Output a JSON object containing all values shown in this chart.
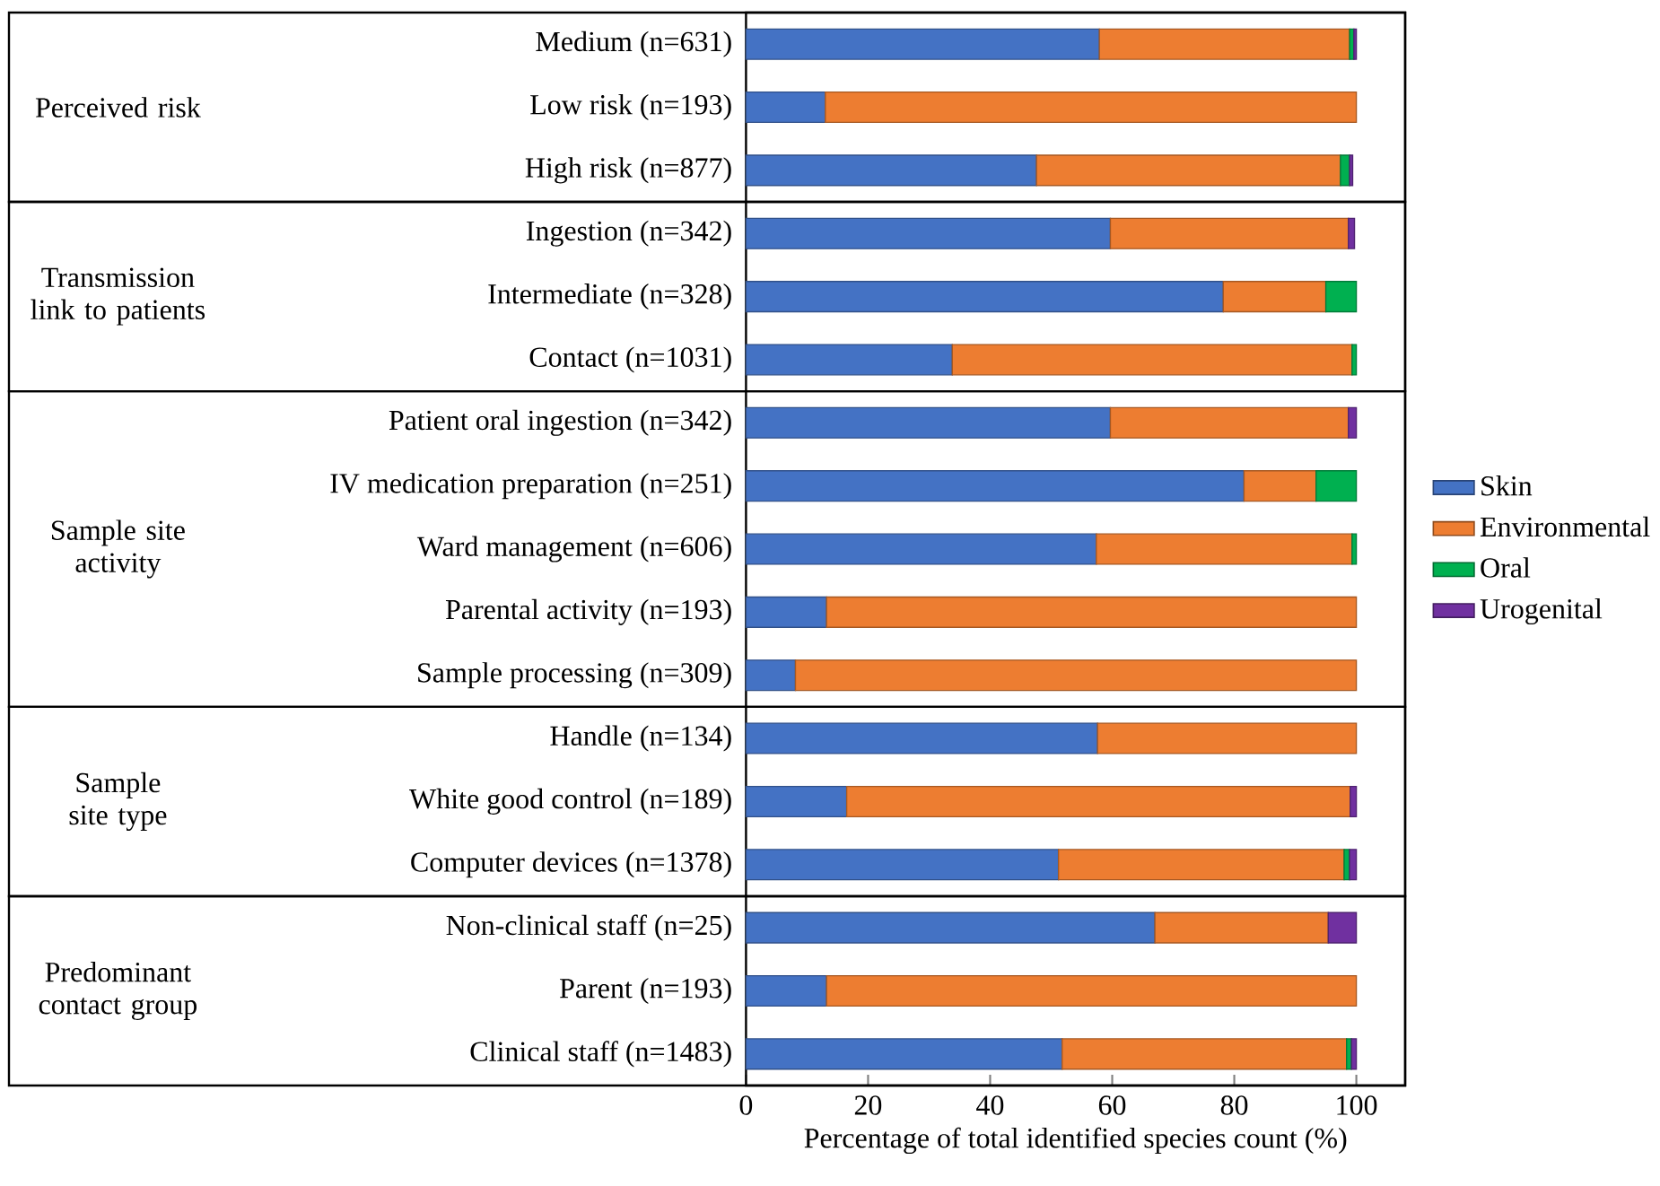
{
  "chart_data": {
    "type": "bar",
    "orientation": "horizontal",
    "stacked": true,
    "xlabel": "Percentage of total identified species count (%)",
    "categories": [
      "Medium (n=631)",
      "Low risk (n=193)",
      "High risk (n=877)",
      "Ingestion (n=342)",
      "Intermediate (n=328)",
      "Contact (n=1031)",
      "Patient oral ingestion (n=342)",
      "IV medication preparation (n=251)",
      "Ward management (n=606)",
      "Parental activity (n=193)",
      "Sample processing (n=309)",
      "Handle (n=134)",
      "White good control (n=189)",
      "Computer devices (n=1378)",
      "Non-clinical staff (n=25)",
      "Parent (n=193)",
      "Clinical staff (n=1483)"
    ],
    "series": [
      {
        "name": "Skin",
        "color": "#4472c4",
        "values": [
          57.9,
          13.0,
          47.6,
          59.7,
          78.2,
          33.8,
          59.7,
          81.6,
          57.4,
          13.2,
          8.1,
          57.6,
          16.5,
          51.2,
          67.0,
          13.2,
          51.8
        ]
      },
      {
        "name": "Environmental",
        "color": "#ed7d31",
        "values": [
          41.0,
          87.0,
          49.8,
          39.0,
          16.8,
          65.5,
          39.0,
          11.8,
          41.9,
          86.8,
          91.9,
          42.4,
          82.5,
          46.8,
          28.4,
          86.8,
          46.6
        ]
      },
      {
        "name": "Oral",
        "color": "#00b050",
        "values": [
          0.7,
          null,
          1.5,
          null,
          5.0,
          0.7,
          null,
          6.6,
          0.7,
          null,
          null,
          null,
          null,
          0.9,
          null,
          null,
          0.8
        ]
      },
      {
        "name": "Urogenital",
        "color": "#7030a0",
        "values": [
          0.4,
          null,
          0.5,
          1.0,
          null,
          null,
          1.3,
          null,
          null,
          null,
          null,
          null,
          1.0,
          1.1,
          4.6,
          null,
          0.8
        ]
      }
    ],
    "annotations": [
      "Perceived risk",
      "Transmission link to patients",
      "Sample site activity",
      "Sample site type",
      "Predominant contact group"
    ],
    "xlim": [
      0,
      108
    ],
    "xticks": [
      0,
      20,
      40,
      60,
      80,
      100
    ],
    "grid": false,
    "legend": "right"
  }
}
